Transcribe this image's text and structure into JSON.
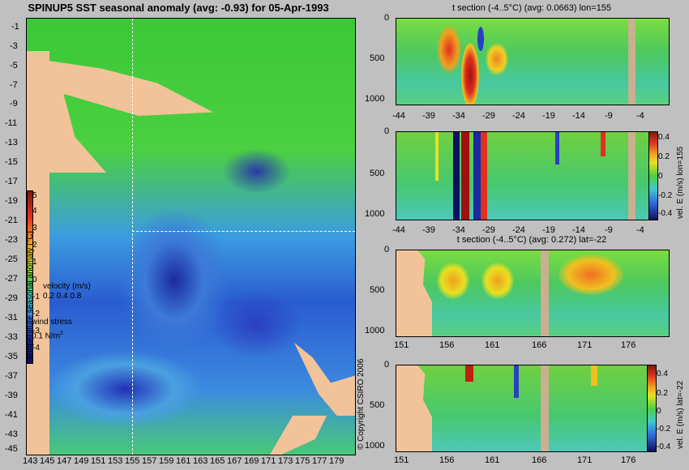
{
  "map": {
    "title": "SPINUP5 SST seasonal anomaly (avg: -0.93) for 05-Apr-1993",
    "y_ticks": [
      "-1",
      "-3",
      "-5",
      "-7",
      "-9",
      "-11",
      "-13",
      "-15",
      "-17",
      "-19",
      "-21",
      "-23",
      "-25",
      "-27",
      "-29",
      "-31",
      "-33",
      "-35",
      "-37",
      "-39",
      "-41",
      "-43",
      "-45"
    ],
    "x_ticks": [
      "143",
      "145",
      "147",
      "149",
      "151",
      "153",
      "155",
      "157",
      "159",
      "161",
      "163",
      "165",
      "167",
      "169",
      "171",
      "173",
      "175",
      "177",
      "179"
    ],
    "colorbar_label": "temperature seasonal anomaly (°C)",
    "colorbar_ticks": [
      "5",
      "4",
      "3",
      "2",
      "1",
      "0",
      "-1",
      "-2",
      "-3",
      "-4"
    ],
    "velocity_label": "velocity (m/s)",
    "velocity_scale": "0.2 0.4 0.8",
    "wind_label": "wind stress",
    "wind_scale": "0.1 N/m",
    "wind_scale_sup": "2",
    "copyright": "© Copyright CSIRO 2006",
    "colors": {
      "land": "#f2c398",
      "background": "#c0c0c0",
      "guide": "#ffffff"
    }
  },
  "panels": [
    {
      "title": "t section (-4..5°C) (avg: 0.0663) lon=155",
      "y_ticks": [
        "0",
        "500",
        "1000"
      ],
      "x_ticks": [
        "-44",
        "-39",
        "-34",
        "-29",
        "-24",
        "-19",
        "-14",
        "-9",
        "-4"
      ]
    },
    {
      "title": "",
      "y_ticks": [
        "0",
        "500",
        "1000"
      ],
      "x_ticks": [
        "-44",
        "-39",
        "-34",
        "-29",
        "-24",
        "-19",
        "-14",
        "-9",
        "-4"
      ],
      "colorbar_label": "vel. E (m/s) lon=155",
      "colorbar_ticks": [
        "0.4",
        "0.2",
        "0",
        "-0.2",
        "-0.4"
      ]
    },
    {
      "title": "t section (-4..5°C) (avg: 0.272) lat=-22",
      "y_ticks": [
        "0",
        "500",
        "1000"
      ],
      "x_ticks": [
        "151",
        "156",
        "161",
        "166",
        "171",
        "176"
      ]
    },
    {
      "title": "",
      "y_ticks": [
        "0",
        "500",
        "1000"
      ],
      "x_ticks": [
        "151",
        "156",
        "161",
        "166",
        "171",
        "176"
      ],
      "colorbar_label": "vel. E (m/s) lat=-22",
      "colorbar_ticks": [
        "0.4",
        "0.2",
        "0",
        "-0.2",
        "-0.4"
      ]
    }
  ]
}
